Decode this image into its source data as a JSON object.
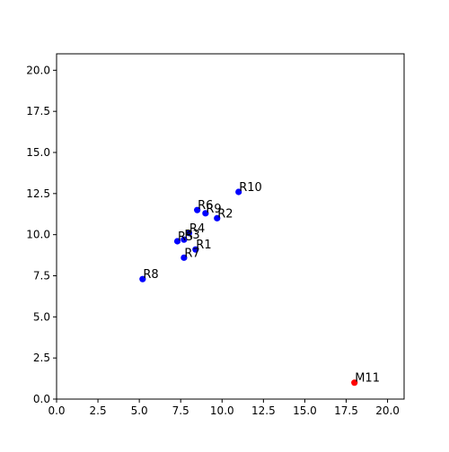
{
  "chart_data": {
    "type": "scatter",
    "title": "",
    "xlabel": "",
    "ylabel": "",
    "xlim": [
      0,
      21
    ],
    "ylim": [
      0,
      21
    ],
    "x_ticks": [
      "0.0",
      "2.5",
      "5.0",
      "7.5",
      "10.0",
      "12.5",
      "15.0",
      "17.5",
      "20.0"
    ],
    "y_ticks": [
      "0.0",
      "2.5",
      "5.0",
      "7.5",
      "10.0",
      "12.5",
      "15.0",
      "17.5",
      "20.0"
    ],
    "grid": false,
    "legend": "none",
    "colors": {
      "R": "#0000ff",
      "M": "#ff0000"
    },
    "points": [
      {
        "label": "R1",
        "x": 8.4,
        "y": 9.1,
        "color": "#0000ff"
      },
      {
        "label": "R2",
        "x": 9.7,
        "y": 11.0,
        "color": "#0000ff"
      },
      {
        "label": "R3",
        "x": 7.7,
        "y": 9.7,
        "color": "#0000ff"
      },
      {
        "label": "R4",
        "x": 8.0,
        "y": 10.1,
        "color": "#0000ff"
      },
      {
        "label": "R5",
        "x": 7.3,
        "y": 9.6,
        "color": "#0000ff"
      },
      {
        "label": "R6",
        "x": 8.5,
        "y": 11.5,
        "color": "#0000ff"
      },
      {
        "label": "R7",
        "x": 7.7,
        "y": 8.6,
        "color": "#0000ff"
      },
      {
        "label": "R8",
        "x": 5.2,
        "y": 7.3,
        "color": "#0000ff"
      },
      {
        "label": "R9",
        "x": 9.0,
        "y": 11.3,
        "color": "#0000ff"
      },
      {
        "label": "R10",
        "x": 11.0,
        "y": 12.6,
        "color": "#0000ff"
      },
      {
        "label": "M11",
        "x": 18.0,
        "y": 1.0,
        "color": "#ff0000"
      }
    ]
  }
}
